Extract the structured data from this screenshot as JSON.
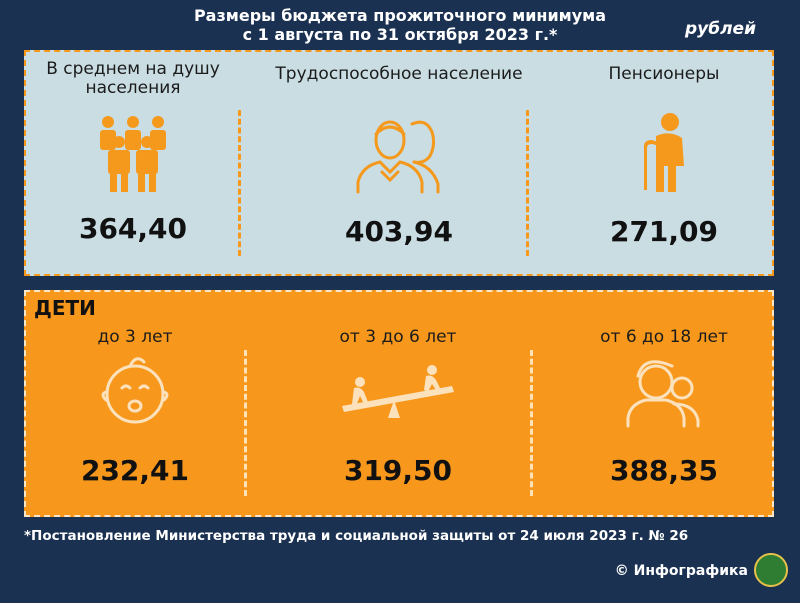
{
  "header": {
    "title_line1": "Размеры бюджета прожиточного минимума",
    "title_line2": "с 1 августа по 31 октября 2023 г.*",
    "unit": "рублей"
  },
  "adults": [
    {
      "label": "В среднем на душу населения",
      "value": "364,40",
      "icon": "group-of-people-icon"
    },
    {
      "label": "Трудоспособное население",
      "value": "403,94",
      "icon": "man-and-woman-icon"
    },
    {
      "label": "Пенсионеры",
      "value": "271,09",
      "icon": "elderly-person-with-cane-icon"
    }
  ],
  "children": {
    "title": "ДЕТИ",
    "items": [
      {
        "label": "до 3 лет",
        "value": "232,41",
        "icon": "baby-face-icon"
      },
      {
        "label": "от 3 до 6 лет",
        "value": "319,50",
        "icon": "seesaw-icon"
      },
      {
        "label": "от 6 до 18 лет",
        "value": "388,35",
        "icon": "teenagers-icon"
      }
    ]
  },
  "footer": {
    "note": "*Постановление Министерства труда и социальной защиты от 24 июля 2023 г. № 26",
    "credit": "© Инфографика"
  },
  "colors": {
    "background": "#1b3152",
    "accent": "#f7981d",
    "panel": "#c9dde3"
  }
}
